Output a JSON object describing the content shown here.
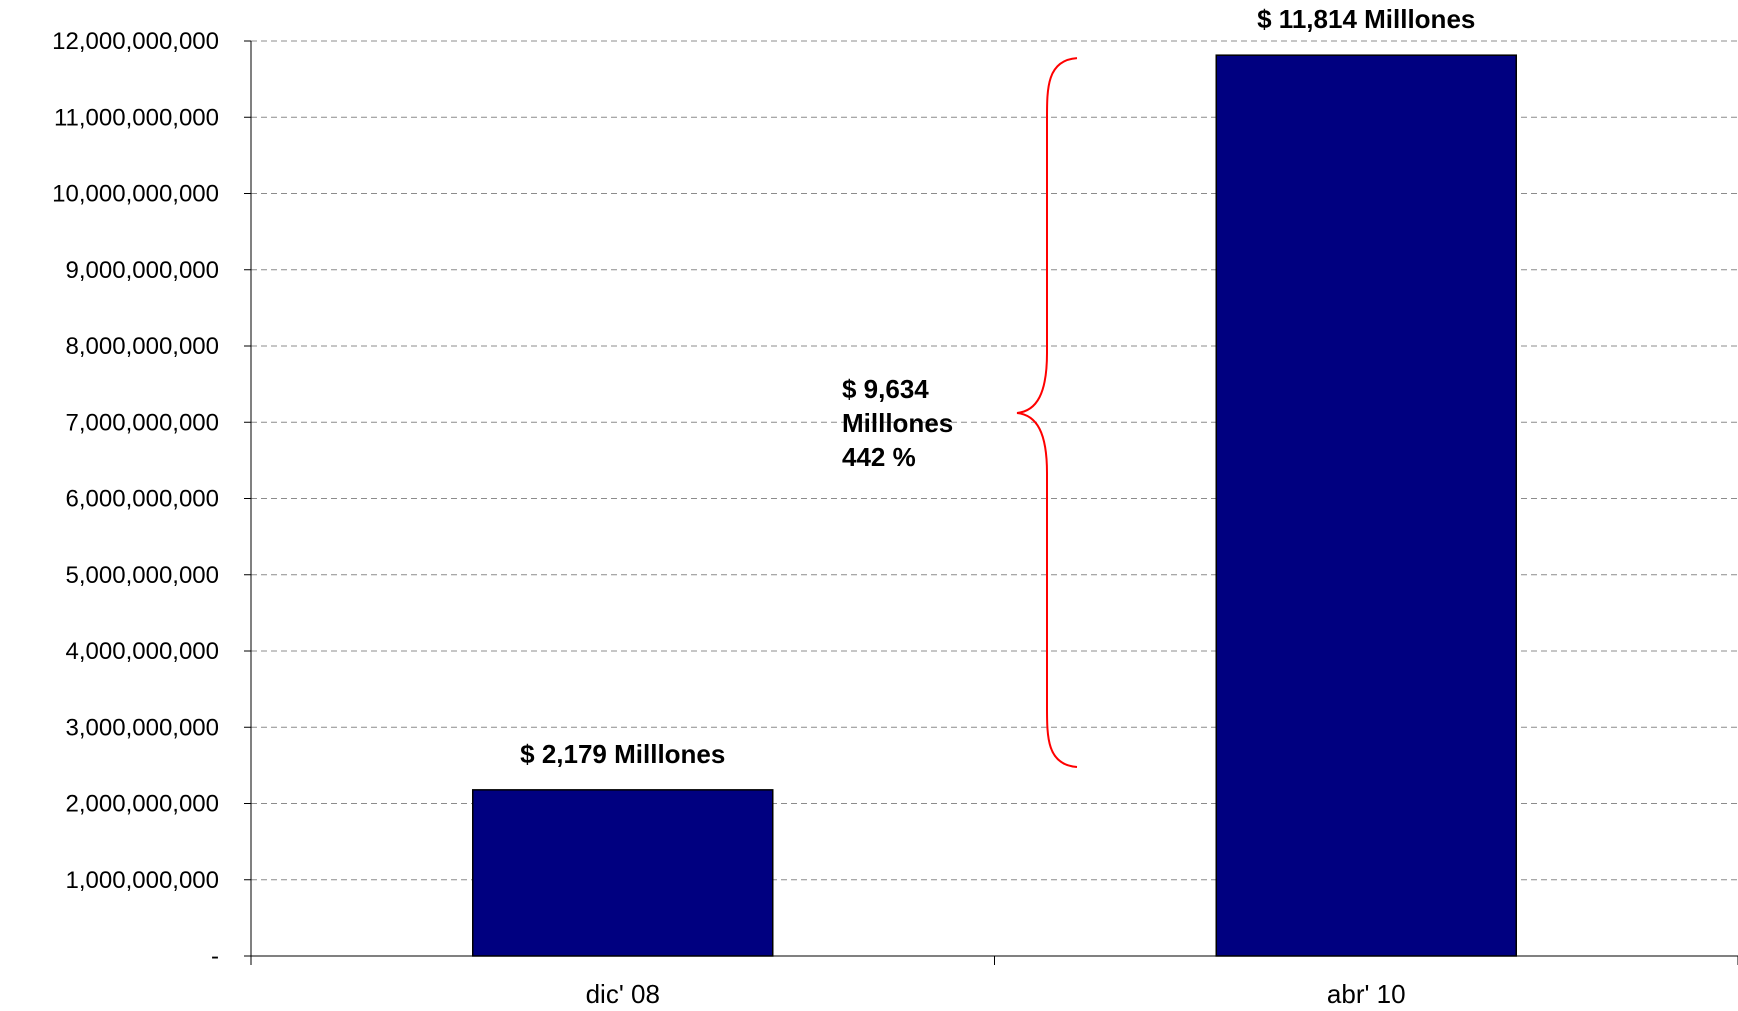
{
  "chart_data": {
    "type": "bar",
    "categories": [
      "dic' 08",
      "abr' 10"
    ],
    "values": [
      2179000000,
      11814000000
    ],
    "data_labels": [
      "$ 2,179 Milllones",
      "$ 11,814 Milllones"
    ],
    "ylim": [
      0,
      12000000000
    ],
    "yticks": [
      0,
      1000000000,
      2000000000,
      3000000000,
      4000000000,
      5000000000,
      6000000000,
      7000000000,
      8000000000,
      9000000000,
      10000000000,
      11000000000,
      12000000000
    ],
    "ytick_labels": [
      "-",
      "1,000,000,000",
      "2,000,000,000",
      "3,000,000,000",
      "4,000,000,000",
      "5,000,000,000",
      "6,000,000,000",
      "7,000,000,000",
      "8,000,000,000",
      "9,000,000,000",
      "10,000,000,000",
      "11,000,000,000",
      "12,000,000,000"
    ],
    "grid": true,
    "legend": "none",
    "bar_color": "#000080",
    "brace_color": "#ff0000",
    "annotation": {
      "lines": [
        "$ 9,634",
        "Milllones",
        "442 %"
      ],
      "span": [
        2179000000,
        11814000000
      ]
    }
  }
}
